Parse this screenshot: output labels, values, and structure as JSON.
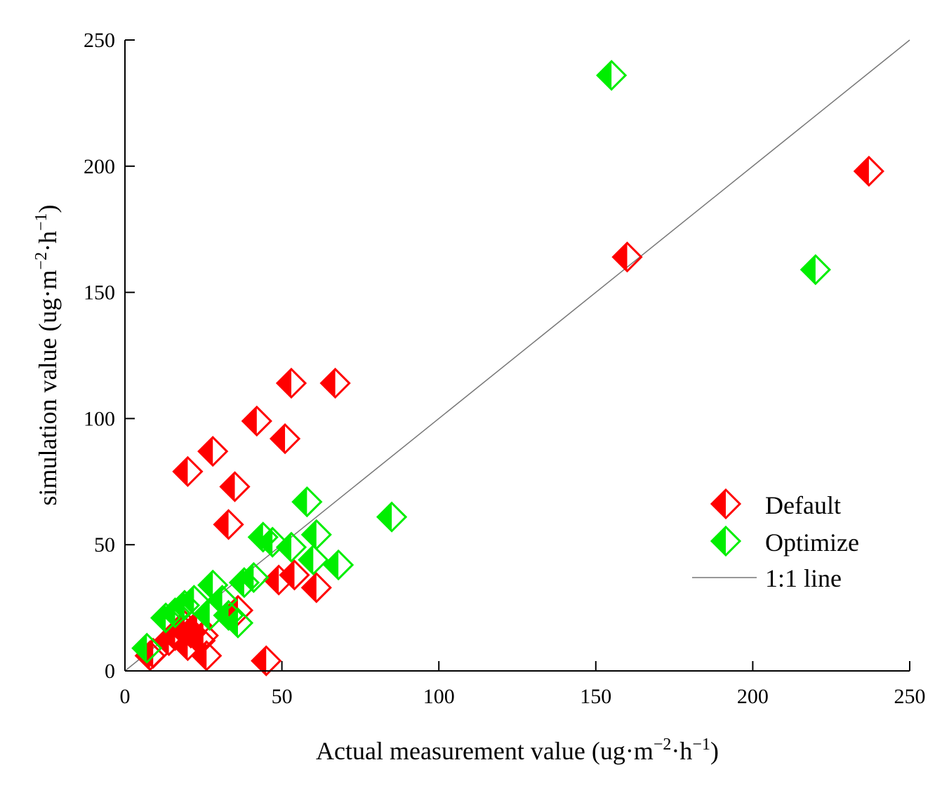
{
  "chart_data": {
    "type": "scatter",
    "title": "",
    "xlabel": {
      "main": "Actual measurement value (ug·m",
      "sup1": "−2",
      "mid": "·h",
      "sup2": "−1",
      "end": ")"
    },
    "ylabel": {
      "main": "simulation value (ug·m",
      "sup1": "−2",
      "mid": "·h",
      "sup2": "−1",
      "end": ")"
    },
    "xlim": [
      0,
      250
    ],
    "ylim": [
      0,
      250
    ],
    "xticks": [
      0,
      50,
      100,
      150,
      200,
      250
    ],
    "yticks": [
      0,
      50,
      100,
      150,
      200,
      250
    ],
    "grid": false,
    "legend_position": "bottom-right",
    "legend": [
      "Default",
      "Optimize",
      "1:1 line"
    ],
    "reference_line": {
      "name": "1:1 line",
      "from": [
        0,
        0
      ],
      "to": [
        250,
        250
      ],
      "color": "#777777"
    },
    "series": [
      {
        "name": "Default",
        "color": "#ff0000",
        "marker": "half-filled-diamond",
        "points": [
          [
            8,
            6
          ],
          [
            9,
            7
          ],
          [
            14,
            12
          ],
          [
            16,
            14
          ],
          [
            18,
            17
          ],
          [
            19,
            18
          ],
          [
            20,
            10
          ],
          [
            21,
            15
          ],
          [
            23,
            18
          ],
          [
            24,
            12
          ],
          [
            25,
            14
          ],
          [
            26,
            6
          ],
          [
            20,
            79
          ],
          [
            28,
            87
          ],
          [
            35,
            73
          ],
          [
            33,
            58
          ],
          [
            36,
            24
          ],
          [
            42,
            99
          ],
          [
            51,
            92
          ],
          [
            53,
            114
          ],
          [
            67,
            114
          ],
          [
            45,
            4
          ],
          [
            49,
            36
          ],
          [
            54,
            38
          ],
          [
            61,
            33
          ],
          [
            160,
            164
          ],
          [
            237,
            198
          ]
        ]
      },
      {
        "name": "Optimize",
        "color": "#00ee00",
        "marker": "half-filled-diamond",
        "points": [
          [
            7,
            9
          ],
          [
            13,
            21
          ],
          [
            16,
            23
          ],
          [
            19,
            26
          ],
          [
            22,
            28
          ],
          [
            27,
            22
          ],
          [
            28,
            34
          ],
          [
            31,
            28
          ],
          [
            33,
            22
          ],
          [
            36,
            19
          ],
          [
            38,
            35
          ],
          [
            41,
            37
          ],
          [
            44,
            53
          ],
          [
            47,
            51
          ],
          [
            53,
            49
          ],
          [
            58,
            67
          ],
          [
            61,
            54
          ],
          [
            60,
            44
          ],
          [
            68,
            42
          ],
          [
            85,
            61
          ],
          [
            155,
            236
          ],
          [
            220,
            159
          ]
        ]
      }
    ]
  }
}
